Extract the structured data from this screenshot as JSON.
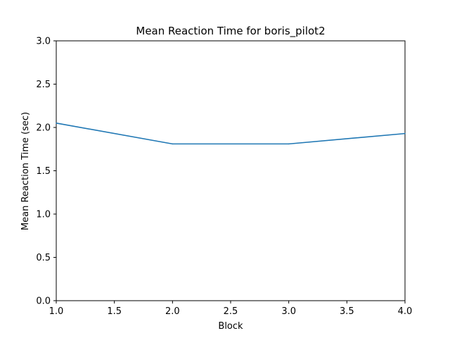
{
  "chart_data": {
    "type": "line",
    "title": "Mean Reaction Time for boris_pilot2",
    "xlabel": "Block",
    "ylabel": "Mean Reaction Time (sec)",
    "xlim": [
      1.0,
      4.0
    ],
    "ylim": [
      0.0,
      3.0
    ],
    "xticks": [
      "1.0",
      "1.5",
      "2.0",
      "2.5",
      "3.0",
      "3.5",
      "4.0"
    ],
    "yticks": [
      "0.0",
      "0.5",
      "1.0",
      "1.5",
      "2.0",
      "2.5",
      "3.0"
    ],
    "grid": false,
    "series": [
      {
        "color": "#1f77b4",
        "x": [
          1,
          2,
          3,
          4
        ],
        "y": [
          2.05,
          1.81,
          1.81,
          1.93
        ]
      }
    ]
  }
}
